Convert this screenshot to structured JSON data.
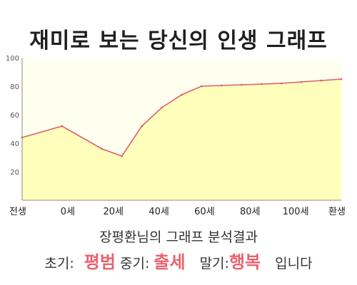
{
  "title": "재미로 보는 당신의 인생 그래프",
  "chart_data": {
    "type": "area",
    "x_tick_labels": [
      "전생",
      "0세",
      "20세",
      "40세",
      "60세",
      "80세",
      "100세",
      "환생"
    ],
    "y_ticks": [
      20,
      40,
      60,
      80,
      100
    ],
    "ylim": [
      0,
      100
    ],
    "x": [
      -10,
      0,
      10,
      15,
      20,
      25,
      30,
      35,
      40,
      45,
      50,
      55,
      60,
      65,
      70
    ],
    "values": [
      44,
      52,
      36,
      31,
      52,
      65,
      74,
      80,
      80.5,
      81,
      81.5,
      82,
      83,
      84,
      85
    ],
    "grid": false,
    "colors": {
      "fill": "#ffffbb",
      "line": "#d9606e",
      "plot_bg": "#fffff0",
      "axis": "#888888"
    }
  },
  "analysis": {
    "subtitle": "장평환님의 그래프 분석결과",
    "early_label": "초기:",
    "early_value": "평범",
    "mid_label": "중기:",
    "mid_value": "출세",
    "late_label": "말기:",
    "late_value": "행복",
    "ending": "입니다"
  }
}
